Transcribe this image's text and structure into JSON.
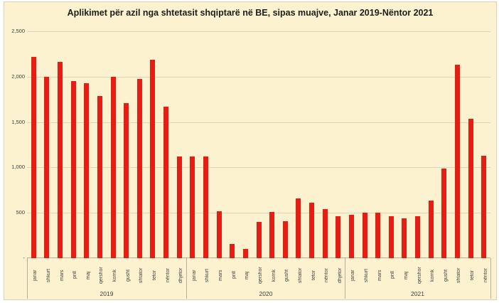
{
  "title": "Aplikimet për azil nga shtetasit shqiptarë në BE, sipas muajve, Janar 2019-Nëntor 2021",
  "colors": {
    "chart_background": "#fdf2cf",
    "bar": "#e71c13",
    "gridline": "#ddd3ba",
    "axis": "#b9b09b",
    "title_text": "#1c1c1c",
    "tick_text": "#3d3d3d"
  },
  "chart_data": {
    "type": "bar",
    "title": "Aplikimet për azil nga shtetasit shqiptarë në BE, sipas muajve, Janar 2019-Nëntor 2021",
    "ylabel": "",
    "xlabel": "",
    "ylim": [
      0,
      2500
    ],
    "grid": true,
    "legend_position": "none",
    "yticks": [
      {
        "label": "2,500",
        "value": 2500
      },
      {
        "label": "2,000",
        "value": 2000
      },
      {
        "label": "1,500",
        "value": 1500
      },
      {
        "label": "1,000",
        "value": 1000
      },
      {
        "label": "500",
        "value": 500
      },
      {
        "label": "-",
        "value": 0
      }
    ],
    "groups": [
      {
        "year": "2019",
        "categories": [
          "janar",
          "shkurt",
          "mars",
          "prill",
          "maj",
          "qershor",
          "korrik",
          "gusht",
          "shtator",
          "tetor",
          "nëntor",
          "dhjetor"
        ],
        "values": [
          2220,
          2000,
          2160,
          1950,
          1925,
          1790,
          2000,
          1705,
          1975,
          2190,
          1670,
          1120
        ]
      },
      {
        "year": "2020",
        "categories": [
          "janar",
          "shkurt",
          "mars",
          "prill",
          "maj",
          "qershor",
          "korrik",
          "gusht",
          "shtator",
          "tetor",
          "nëntor",
          "dhjetor"
        ],
        "values": [
          1120,
          1120,
          520,
          155,
          100,
          400,
          510,
          410,
          660,
          615,
          540,
          465
        ]
      },
      {
        "year": "2021",
        "categories": [
          "janar",
          "shkurt",
          "mars",
          "prill",
          "maj",
          "qershor",
          "korrik",
          "gusht",
          "shtator",
          "tetor",
          "nëntor"
        ],
        "values": [
          480,
          500,
          505,
          465,
          440,
          460,
          635,
          985,
          2130,
          1535,
          1125
        ]
      }
    ]
  }
}
